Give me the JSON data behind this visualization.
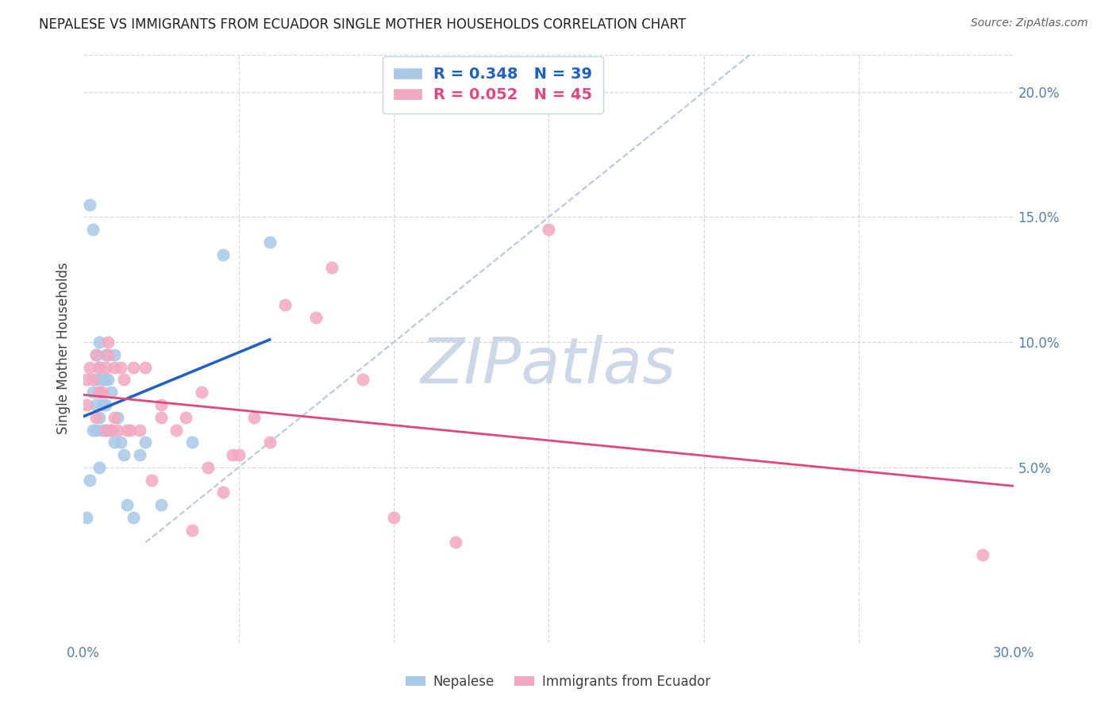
{
  "title": "NEPALESE VS IMMIGRANTS FROM ECUADOR SINGLE MOTHER HOUSEHOLDS CORRELATION CHART",
  "source": "Source: ZipAtlas.com",
  "ylabel": "Single Mother Households",
  "right_yticks": [
    "20.0%",
    "15.0%",
    "10.0%",
    "5.0%"
  ],
  "right_ytick_vals": [
    0.2,
    0.15,
    0.1,
    0.05
  ],
  "legend_label1": "Nepalese",
  "legend_label2": "Immigrants from Ecuador",
  "R1": "0.348",
  "N1": "39",
  "R2": "0.052",
  "N2": "45",
  "nepalese_x": [
    0.001,
    0.002,
    0.002,
    0.003,
    0.003,
    0.003,
    0.004,
    0.004,
    0.004,
    0.004,
    0.005,
    0.005,
    0.005,
    0.005,
    0.005,
    0.006,
    0.006,
    0.006,
    0.007,
    0.007,
    0.007,
    0.007,
    0.008,
    0.008,
    0.009,
    0.009,
    0.01,
    0.01,
    0.011,
    0.012,
    0.013,
    0.014,
    0.016,
    0.018,
    0.02,
    0.025,
    0.035,
    0.045,
    0.06
  ],
  "nepalese_y": [
    0.03,
    0.045,
    0.155,
    0.065,
    0.08,
    0.145,
    0.065,
    0.075,
    0.085,
    0.095,
    0.05,
    0.07,
    0.08,
    0.09,
    0.1,
    0.065,
    0.075,
    0.085,
    0.065,
    0.075,
    0.085,
    0.095,
    0.065,
    0.085,
    0.065,
    0.08,
    0.06,
    0.095,
    0.07,
    0.06,
    0.055,
    0.035,
    0.03,
    0.055,
    0.06,
    0.035,
    0.06,
    0.135,
    0.14
  ],
  "ecuador_x": [
    0.001,
    0.001,
    0.002,
    0.003,
    0.004,
    0.004,
    0.005,
    0.005,
    0.006,
    0.007,
    0.007,
    0.008,
    0.008,
    0.009,
    0.01,
    0.01,
    0.011,
    0.012,
    0.013,
    0.014,
    0.015,
    0.016,
    0.018,
    0.02,
    0.022,
    0.025,
    0.025,
    0.03,
    0.033,
    0.035,
    0.038,
    0.04,
    0.045,
    0.048,
    0.05,
    0.055,
    0.06,
    0.065,
    0.075,
    0.08,
    0.09,
    0.1,
    0.12,
    0.15,
    0.29
  ],
  "ecuador_y": [
    0.075,
    0.085,
    0.09,
    0.085,
    0.07,
    0.095,
    0.08,
    0.09,
    0.08,
    0.065,
    0.09,
    0.095,
    0.1,
    0.065,
    0.07,
    0.09,
    0.065,
    0.09,
    0.085,
    0.065,
    0.065,
    0.09,
    0.065,
    0.09,
    0.045,
    0.07,
    0.075,
    0.065,
    0.07,
    0.025,
    0.08,
    0.05,
    0.04,
    0.055,
    0.055,
    0.07,
    0.06,
    0.115,
    0.11,
    0.13,
    0.085,
    0.03,
    0.02,
    0.145,
    0.015
  ],
  "nepalese_color": "#a8c8e8",
  "ecuador_color": "#f4a8c0",
  "trendline1_color": "#2060c0",
  "trendline2_color": "#e04878",
  "diagonal_color": "#b8c8d8",
  "watermark_text": "ZIPatlas",
  "watermark_color": "#ccd8e8",
  "background_color": "#ffffff",
  "grid_color": "#d0d8e8",
  "xlim": [
    0.0,
    0.3
  ],
  "ylim": [
    -0.02,
    0.215
  ],
  "xplot_min": 0.0,
  "xplot_max": 0.3
}
